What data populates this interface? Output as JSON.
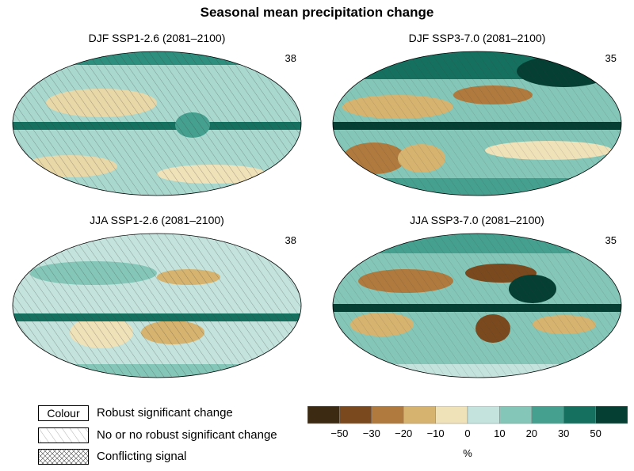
{
  "title": "Seasonal mean precipitation change",
  "panels": [
    {
      "title": "DJF SSP1-2.6 (2081–2100)",
      "count": "38"
    },
    {
      "title": "DJF SSP3-7.0 (2081–2100)",
      "count": "35"
    },
    {
      "title": "JJA SSP1-2.6 (2081–2100)",
      "count": "38"
    },
    {
      "title": "JJA SSP3-7.0 (2081–2100)",
      "count": "35"
    }
  ],
  "legend": {
    "colour_box": "Colour",
    "robust": "Robust significant change",
    "no_robust": "No or no robust significant change",
    "conflicting": "Conflicting signal"
  },
  "colorbar": {
    "colors": [
      "#3d2a12",
      "#7a4a1e",
      "#b07a3e",
      "#d6b46f",
      "#efe1b8",
      "#c3e3dc",
      "#84c6b8",
      "#45a08f",
      "#16705f",
      "#053f34"
    ],
    "ticks": [
      "−50",
      "−30",
      "−20",
      "−10",
      "0",
      "10",
      "20",
      "30",
      "50"
    ],
    "unit": "%"
  }
}
